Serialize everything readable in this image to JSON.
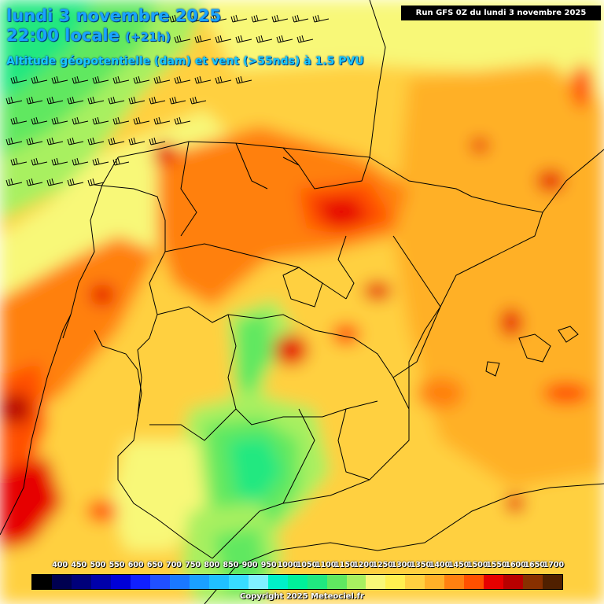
{
  "header": {
    "date": "lundi 3 novembre 2025",
    "time": "22:00 locale",
    "offset": "(+21h)",
    "subtitle": "Altitude géopotentielle (dam) et vent (>55nds) à 1.5 PVU",
    "run": "Run GFS 0Z du lundi 3 novembre 2025"
  },
  "legend": {
    "labels": [
      "400",
      "450",
      "500",
      "550",
      "600",
      "650",
      "700",
      "750",
      "800",
      "850",
      "900",
      "950",
      "1000",
      "1050",
      "1100",
      "1150",
      "1200",
      "1250",
      "1300",
      "1350",
      "1400",
      "1450",
      "1500",
      "1550",
      "1600",
      "1650",
      "1700"
    ],
    "colors": [
      "#000000",
      "#000050",
      "#00007a",
      "#0000aa",
      "#0000d8",
      "#1020ff",
      "#2050ff",
      "#1a78ff",
      "#1aa0ff",
      "#20c0ff",
      "#38dcff",
      "#80f0ff",
      "#00f0c8",
      "#00f09a",
      "#20e880",
      "#60e860",
      "#a8f060",
      "#f8f878",
      "#fff050",
      "#ffd040",
      "#ffb028",
      "#ff8010",
      "#ff5000",
      "#e60000",
      "#b80000",
      "#883000",
      "#502000"
    ]
  },
  "copyright": "Copyright 2025 Meteociel.fr"
}
